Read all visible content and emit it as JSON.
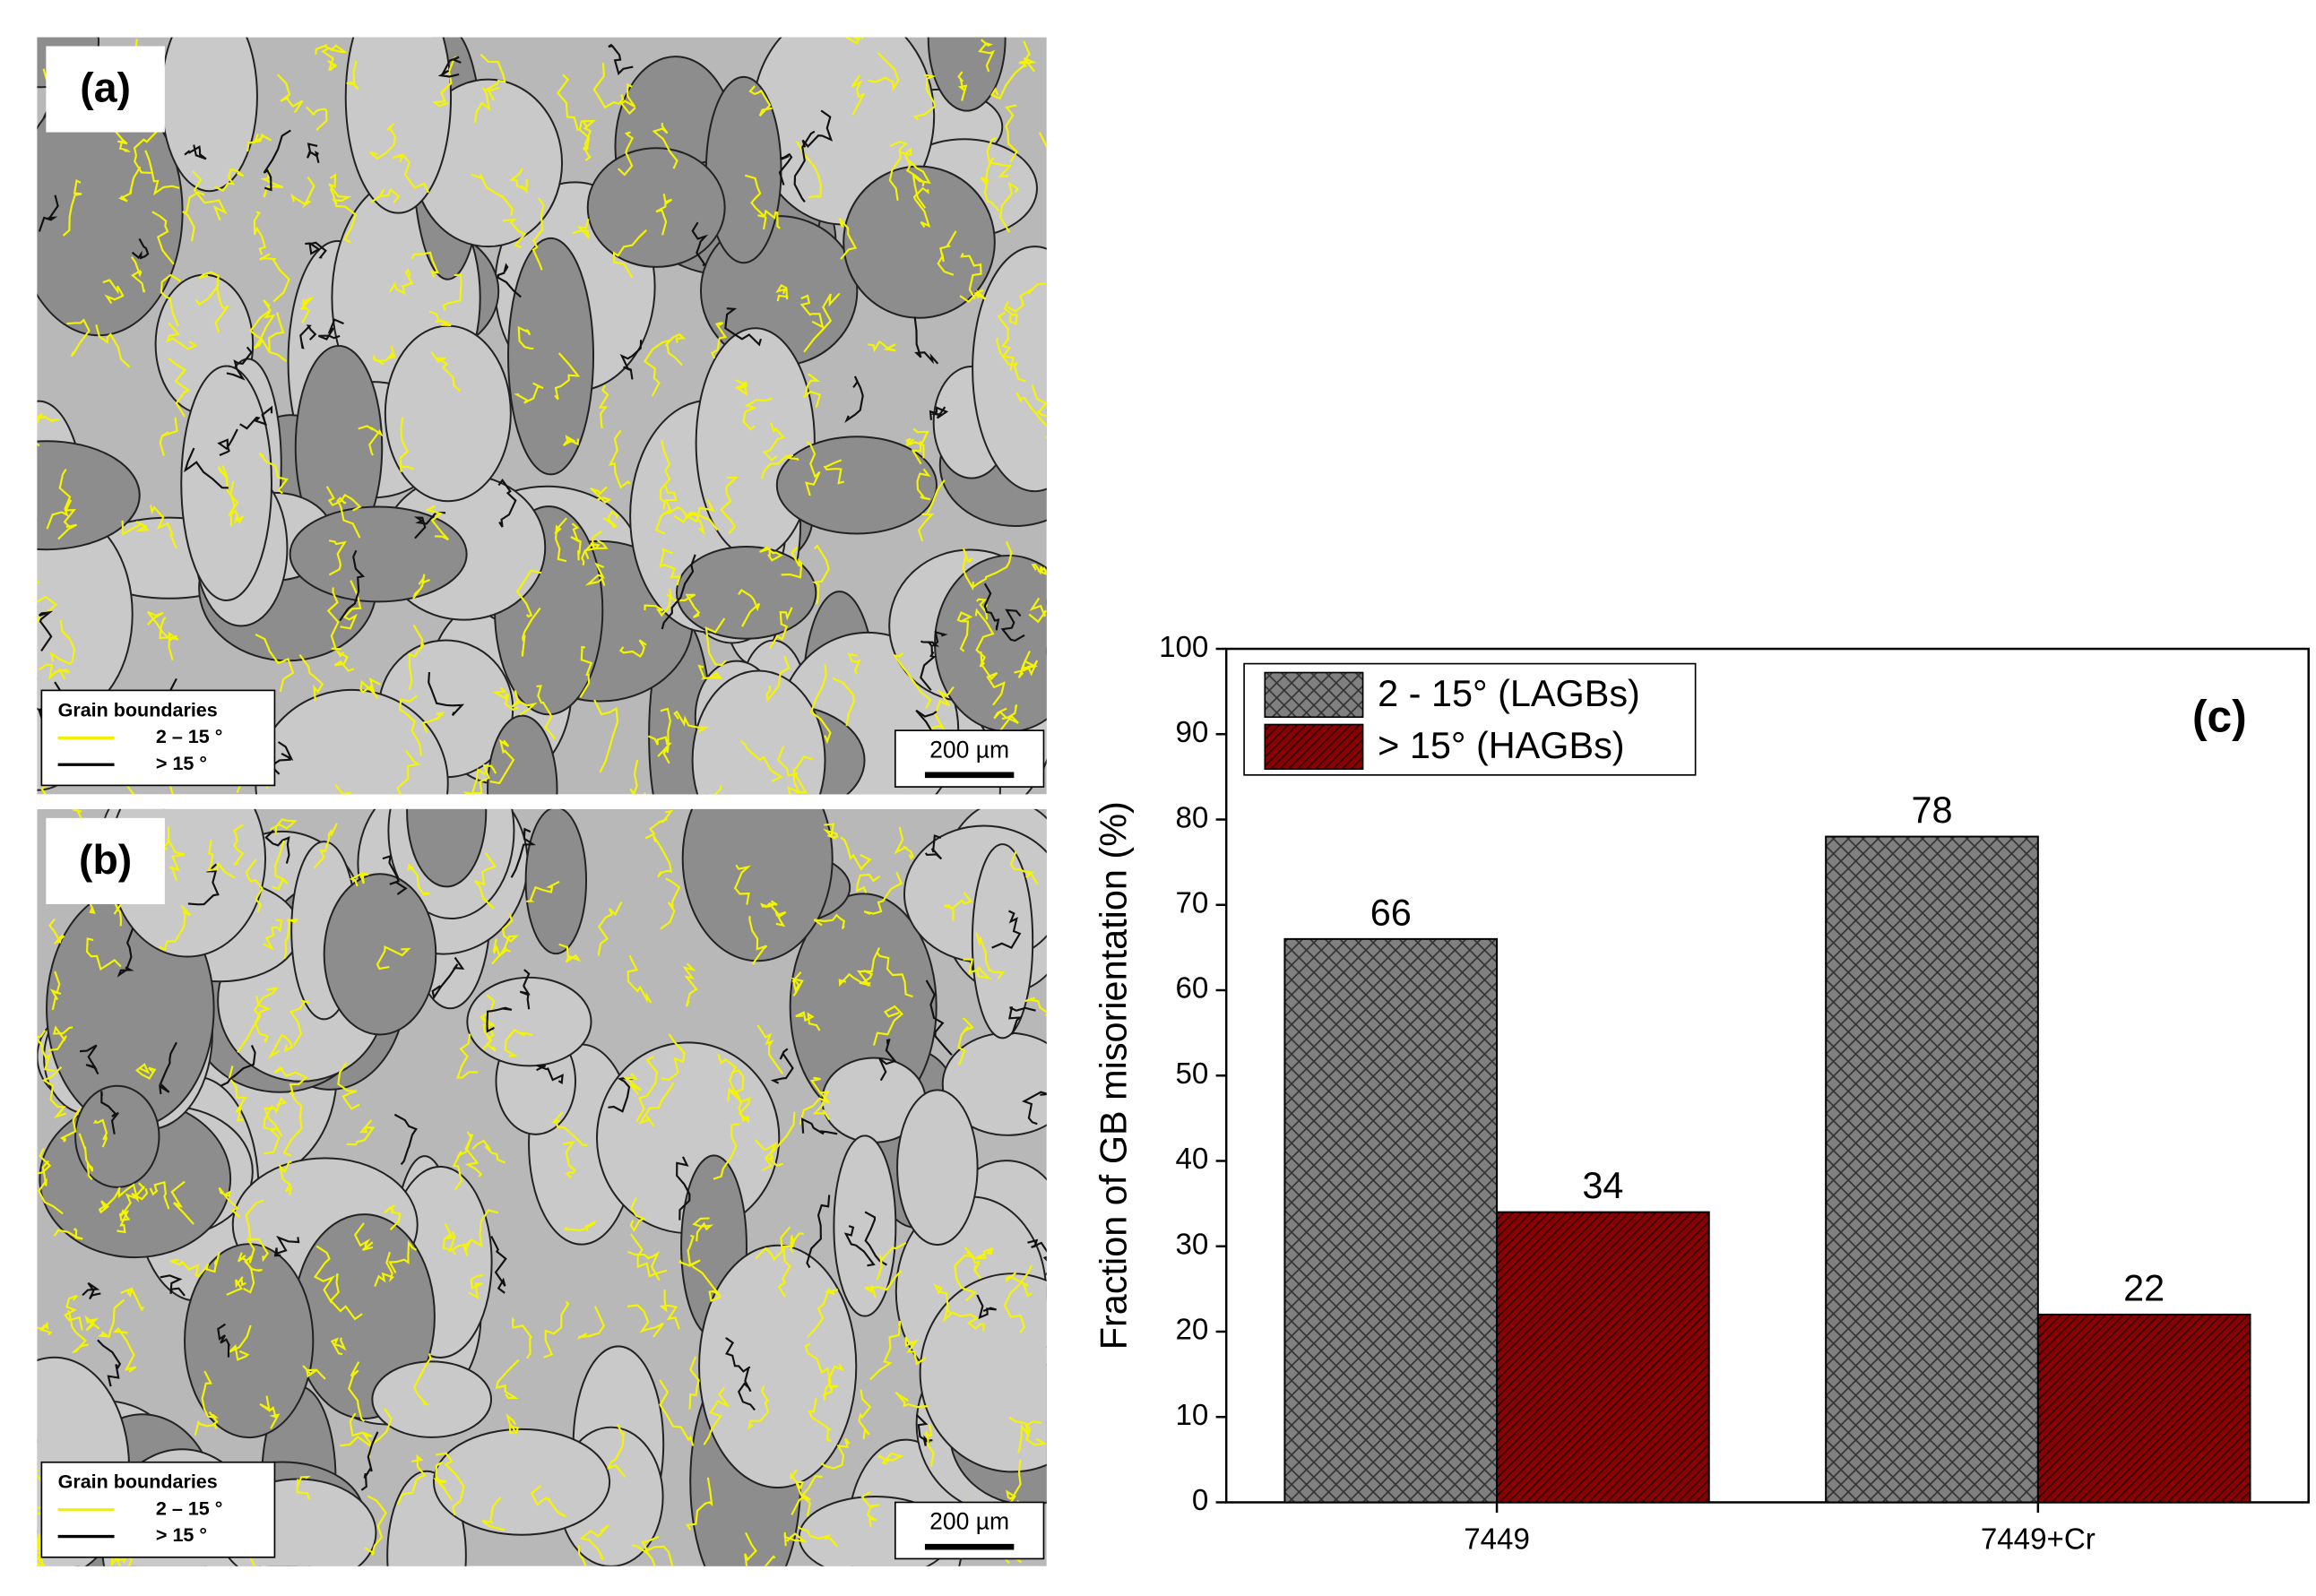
{
  "micrographs": [
    {
      "label": "(a)",
      "legend_title": "Grain boundaries",
      "legend_items": [
        "2 – 15 °",
        "> 15 °"
      ],
      "scale_bar": "200 µm"
    },
    {
      "label": "(b)",
      "legend_title": "Grain boundaries",
      "legend_items": [
        "2 – 15 °",
        "> 15 °"
      ],
      "scale_bar": "200 µm"
    }
  ],
  "chart_data": {
    "type": "bar",
    "annotation": "(c)",
    "y_label": "Fraction of GB misorientation (%)",
    "categories": [
      "7449",
      "7449+Cr"
    ],
    "series": [
      {
        "name": "2 - 15° (LAGBs)",
        "color": "#808080",
        "values": [
          66,
          78
        ]
      },
      {
        "name": "> 15° (HAGBs)",
        "color": "#8b0000",
        "values": [
          34,
          22
        ]
      }
    ],
    "ylim": [
      0,
      100
    ],
    "yticks": [
      0,
      10,
      20,
      30,
      40,
      50,
      60,
      70,
      80,
      90,
      100
    ],
    "grid": false,
    "legend": "upper left"
  }
}
